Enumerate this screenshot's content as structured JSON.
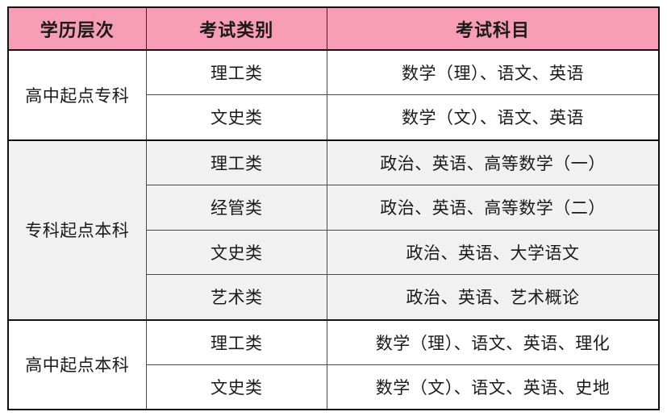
{
  "table": {
    "columns": [
      "学历层次",
      "考试类别",
      "考试科目"
    ],
    "groups": [
      {
        "level": "高中起点专科",
        "shaded": false,
        "rows": [
          {
            "category": "理工类",
            "subjects": "数学（理）、语文、英语"
          },
          {
            "category": "文史类",
            "subjects": "数学（文）、语文、英语"
          }
        ]
      },
      {
        "level": "专科起点本科",
        "shaded": true,
        "rows": [
          {
            "category": "理工类",
            "subjects": "政治、英语、高等数学（一）"
          },
          {
            "category": "经管类",
            "subjects": "政治、英语、高等数学（二）"
          },
          {
            "category": "文史类",
            "subjects": "政治、英语、大学语文"
          },
          {
            "category": "艺术类",
            "subjects": "政治、英语、艺术概论"
          }
        ]
      },
      {
        "level": "高中起点本科",
        "shaded": false,
        "rows": [
          {
            "category": "理工类",
            "subjects": "数学（理）、语文、英语、理化"
          },
          {
            "category": "文史类",
            "subjects": "数学（文）、语文、英语、史地"
          }
        ]
      }
    ]
  },
  "colors": {
    "header_bg": "#F79DB5",
    "band_bg": "#F1F1F1",
    "border_dark": "#121212",
    "text": "#1a1a1a"
  }
}
